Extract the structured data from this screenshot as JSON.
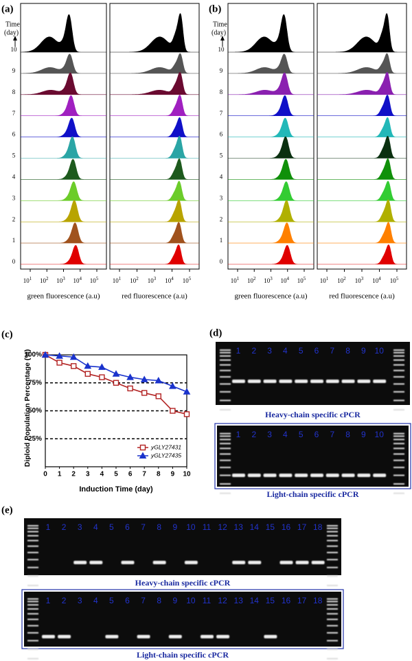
{
  "panel_a": {
    "label": "(a)",
    "time_label": "Time",
    "day_label": "(day)",
    "days": [
      "0",
      "1",
      "2",
      "3",
      "4",
      "5",
      "6",
      "7",
      "8",
      "9",
      "10"
    ],
    "tick_base": "10",
    "tick_exponents": [
      "1",
      "2",
      "3",
      "4",
      "5"
    ],
    "x_label_green": "green fluorescence (a.u)",
    "x_label_red": "red fluorescence (a.u)"
  },
  "panel_b": {
    "label": "(b)",
    "time_label": "Time",
    "day_label": "(day)",
    "days": [
      "0",
      "1",
      "2",
      "3",
      "4",
      "5",
      "6",
      "7",
      "8",
      "9",
      "10"
    ],
    "tick_base": "10",
    "tick_exponents": [
      "1",
      "2",
      "3",
      "4",
      "5"
    ],
    "x_label_green": "green fluorescence (a.u)",
    "x_label_red": "red fluorescence (a.u)"
  },
  "panel_c": {
    "label": "(c)"
  },
  "chart_data": {
    "type": "line",
    "x_label": "Induction Time  (day)",
    "y_label": "Diploid Population Percentage (%)",
    "x": [
      0,
      1,
      2,
      3,
      4,
      5,
      6,
      7,
      8,
      9,
      10
    ],
    "xlim": [
      0,
      10
    ],
    "xticks": [
      0,
      1,
      2,
      3,
      4,
      5,
      6,
      7,
      8,
      9,
      10
    ],
    "ylim": [
      0,
      100
    ],
    "yticks": [
      {
        "value": 25,
        "label": "25%"
      },
      {
        "value": 50,
        "label": "50%"
      },
      {
        "value": 75,
        "label": "75%"
      },
      {
        "value": 100,
        "label": "100%"
      }
    ],
    "grid": true,
    "legend": "lower right",
    "series": [
      {
        "name": "yGLY27431",
        "color": "#b22222",
        "marker": "square",
        "values": [
          100,
          93,
          90,
          83,
          80,
          75,
          70,
          66,
          63,
          50,
          47
        ]
      },
      {
        "name": "yGLY27435",
        "color": "#1a33cc",
        "marker": "triangle",
        "values": [
          100,
          99,
          98,
          90,
          89,
          83,
          80,
          78,
          77,
          72,
          67
        ]
      }
    ]
  },
  "panel_d": {
    "label": "(d)",
    "lanes": [
      "1",
      "2",
      "3",
      "4",
      "5",
      "6",
      "7",
      "8",
      "9",
      "10"
    ],
    "captions": [
      "Heavy-chain specific cPCR",
      "Light-chain specific cPCR"
    ]
  },
  "panel_e": {
    "label": "(e)",
    "lanes": [
      "1",
      "2",
      "3",
      "4",
      "5",
      "6",
      "7",
      "8",
      "9",
      "10",
      "11",
      "12",
      "13",
      "14",
      "15",
      "16",
      "17",
      "18"
    ],
    "captions": [
      "Heavy-chain specific cPCR",
      "Light-chain specific cPCR"
    ]
  }
}
